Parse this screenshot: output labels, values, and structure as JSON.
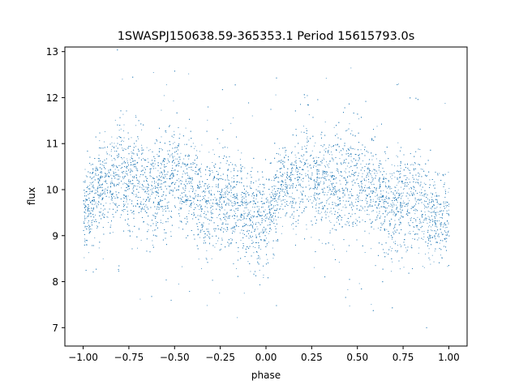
{
  "chart_data": {
    "type": "scatter",
    "title": "1SWASPJ150638.59-365353.1 Period 15615793.0s",
    "xlabel": "phase",
    "ylabel": "flux",
    "xlim": [
      -1.1,
      1.1
    ],
    "ylim": [
      6.6,
      13.1
    ],
    "grid": false,
    "legend": "none",
    "point_color": "#1f77b4",
    "x_ticks": [
      -1.0,
      -0.75,
      -0.5,
      -0.25,
      0.0,
      0.25,
      0.5,
      0.75,
      1.0
    ],
    "x_tick_labels": [
      "−1.00",
      "−0.75",
      "−0.50",
      "−0.25",
      "0.00",
      "0.25",
      "0.50",
      "0.75",
      "1.00"
    ],
    "y_ticks": [
      7,
      8,
      9,
      10,
      11,
      12,
      13
    ],
    "y_tick_labels": [
      "7",
      "8",
      "9",
      "10",
      "11",
      "12",
      "13"
    ],
    "trend": {
      "phase": [
        0.0,
        0.05,
        0.1,
        0.15,
        0.2,
        0.25,
        0.3,
        0.35,
        0.4,
        0.45,
        0.5,
        0.55,
        0.6,
        0.65,
        0.7,
        0.75,
        0.8,
        0.85,
        0.9,
        0.95,
        1.0
      ],
      "flux_center": [
        9.4,
        9.8,
        10.1,
        10.1,
        10.4,
        10.3,
        10.2,
        10.1,
        10.0,
        10.2,
        10.3,
        10.1,
        10.0,
        9.7,
        9.6,
        9.8,
        9.8,
        9.6,
        9.5,
        9.3,
        9.4
      ],
      "flux_spread": [
        0.5,
        0.45,
        0.45,
        0.5,
        0.6,
        0.6,
        0.55,
        0.55,
        0.6,
        0.65,
        0.6,
        0.55,
        0.55,
        0.6,
        0.55,
        0.55,
        0.5,
        0.5,
        0.5,
        0.5,
        0.5
      ]
    }
  }
}
